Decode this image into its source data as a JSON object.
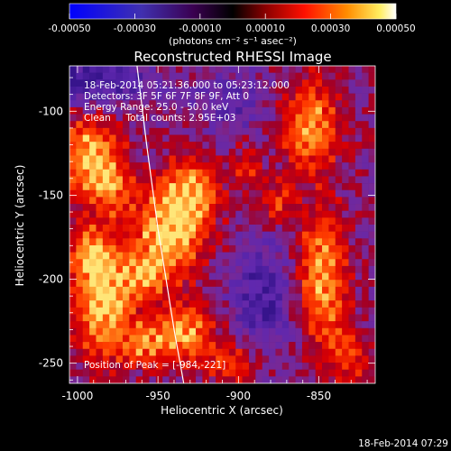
{
  "chart_data": {
    "type": "heatmap",
    "title": "Reconstructed RHESSI Image",
    "xlabel": "Heliocentric X (arcsec)",
    "ylabel": "Heliocentric Y (arcsec)",
    "xlim": [
      -1005,
      -815
    ],
    "ylim": [
      -262,
      -73
    ],
    "xticks": [
      -1000,
      -950,
      -900,
      -850
    ],
    "xtick_labels": [
      "-1000",
      "-950",
      "-900",
      "-850"
    ],
    "yticks": [
      -100,
      -150,
      -200,
      -250
    ],
    "ytick_labels": [
      "-100",
      "-150",
      "-200",
      "-250"
    ],
    "colorbar": {
      "range": [
        -0.0005,
        0.0005
      ],
      "ticks": [
        -0.0005,
        -0.0003,
        -0.0001,
        0.0001,
        0.0003,
        0.0005
      ],
      "tick_labels": [
        "-0.00050",
        "-0.00030",
        "-0.00010",
        "0.00010",
        "0.00030",
        "0.00050"
      ],
      "unit_label": "(photons cm⁻² s⁻¹ asec⁻²)"
    },
    "info": [
      "18-Feb-2014 05:21:36.000 to 05:23:12.000",
      "Detectors: 3F 5F 6F 7F 8F 9F, Att 0",
      "Energy Range: 25.0 - 50.0 keV",
      "Clean     Total counts: 2.95E+03"
    ],
    "peak_label": "Position of Peak = [-984,-221]",
    "peak": [
      -984,
      -221
    ],
    "limb_curve": [
      [
        -963,
        -73
      ],
      [
        -957,
        -120
      ],
      [
        -950,
        -170
      ],
      [
        -945,
        -200
      ],
      [
        -940,
        -230
      ],
      [
        -934,
        -262
      ]
    ],
    "blobs": [
      {
        "x": -992,
        "y": -128,
        "sx": 12,
        "sy": 16,
        "a": 1.0
      },
      {
        "x": -978,
        "y": -146,
        "sx": 8,
        "sy": 12,
        "a": 0.6
      },
      {
        "x": -984,
        "y": -212,
        "sx": 12,
        "sy": 24,
        "a": 1.1
      },
      {
        "x": -992,
        "y": -185,
        "sx": 8,
        "sy": 10,
        "a": 0.7
      },
      {
        "x": -945,
        "y": -172,
        "sx": 14,
        "sy": 20,
        "a": 1.05
      },
      {
        "x": -928,
        "y": -150,
        "sx": 10,
        "sy": 15,
        "a": 0.85
      },
      {
        "x": -960,
        "y": -198,
        "sx": 10,
        "sy": 10,
        "a": 0.6
      },
      {
        "x": -935,
        "y": -233,
        "sx": 13,
        "sy": 11,
        "a": 0.95
      },
      {
        "x": -960,
        "y": -238,
        "sx": 8,
        "sy": 8,
        "a": 0.65
      },
      {
        "x": -855,
        "y": -110,
        "sx": 12,
        "sy": 18,
        "a": 0.85
      },
      {
        "x": -848,
        "y": -200,
        "sx": 10,
        "sy": 26,
        "a": 0.95
      },
      {
        "x": -875,
        "y": -155,
        "sx": 7,
        "sy": 9,
        "a": 0.45
      },
      {
        "x": -905,
        "y": -250,
        "sx": 10,
        "sy": 8,
        "a": 0.55
      },
      {
        "x": -895,
        "y": -135,
        "sx": 7,
        "sy": 9,
        "a": 0.4
      },
      {
        "x": -830,
        "y": -245,
        "sx": 8,
        "sy": 10,
        "a": 0.55
      }
    ],
    "holes": [
      {
        "x": -990,
        "y": -82,
        "sx": 25,
        "sy": 10,
        "a": 0.5
      },
      {
        "x": -885,
        "y": -210,
        "sx": 14,
        "sy": 22,
        "a": 0.45
      },
      {
        "x": -905,
        "y": -95,
        "sx": 18,
        "sy": 12,
        "a": 0.3
      }
    ]
  },
  "footer": {
    "timestamp": "18-Feb-2014 07:29"
  }
}
